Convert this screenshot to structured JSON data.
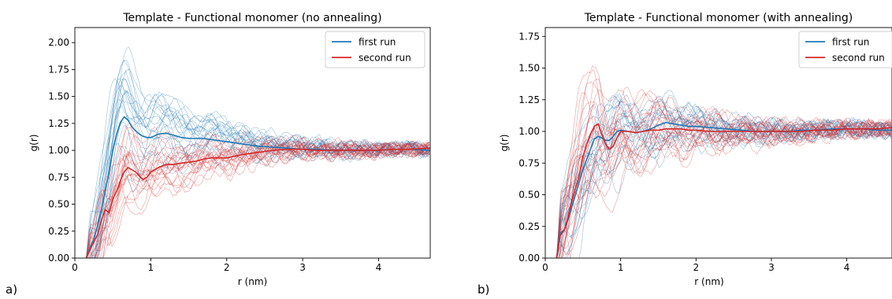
{
  "chart_data": [
    {
      "type": "line",
      "panel_label": "a)",
      "title": "Template - Functional monomer (no annealing)",
      "xlabel": "r (nm)",
      "ylabel": "g(r)",
      "xlim": [
        0,
        4.68
      ],
      "ylim": [
        0,
        2.14
      ],
      "xticks": [
        0,
        1,
        2,
        3,
        4
      ],
      "yticks": [
        0.0,
        0.25,
        0.5,
        0.75,
        1.0,
        1.25,
        1.5,
        1.75,
        2.0
      ],
      "legend_position": "top-right",
      "series": [
        {
          "name": "first run",
          "color": "#1f77b4",
          "x": [
            0.15,
            0.2,
            0.25,
            0.3,
            0.35,
            0.4,
            0.45,
            0.5,
            0.55,
            0.6,
            0.65,
            0.7,
            0.75,
            0.8,
            0.85,
            0.9,
            0.95,
            1.0,
            1.1,
            1.2,
            1.3,
            1.4,
            1.5,
            1.6,
            1.7,
            1.8,
            1.9,
            2.0,
            2.2,
            2.4,
            2.6,
            2.8,
            3.0,
            3.2,
            3.4,
            3.6,
            3.8,
            4.0,
            4.2,
            4.4,
            4.68
          ],
          "y": [
            0.0,
            0.1,
            0.18,
            0.3,
            0.45,
            0.62,
            0.8,
            1.0,
            1.15,
            1.26,
            1.31,
            1.28,
            1.22,
            1.18,
            1.15,
            1.13,
            1.12,
            1.12,
            1.15,
            1.16,
            1.14,
            1.12,
            1.11,
            1.11,
            1.11,
            1.1,
            1.09,
            1.08,
            1.06,
            1.04,
            1.03,
            1.02,
            1.01,
            1.01,
            1.0,
            1.0,
            1.0,
            1.0,
            1.01,
            1.01,
            1.0
          ]
        },
        {
          "name": "second run",
          "color": "#d62728",
          "x": [
            0.15,
            0.2,
            0.25,
            0.3,
            0.35,
            0.4,
            0.45,
            0.5,
            0.55,
            0.6,
            0.65,
            0.7,
            0.75,
            0.8,
            0.85,
            0.9,
            0.95,
            1.0,
            1.1,
            1.2,
            1.3,
            1.4,
            1.5,
            1.6,
            1.7,
            1.8,
            1.9,
            2.0,
            2.2,
            2.4,
            2.6,
            2.8,
            3.0,
            3.2,
            3.4,
            3.6,
            3.8,
            4.0,
            4.2,
            4.4,
            4.68
          ],
          "y": [
            0.0,
            0.08,
            0.15,
            0.22,
            0.35,
            0.45,
            0.42,
            0.55,
            0.62,
            0.72,
            0.8,
            0.84,
            0.82,
            0.8,
            0.76,
            0.73,
            0.75,
            0.8,
            0.84,
            0.87,
            0.87,
            0.88,
            0.89,
            0.9,
            0.92,
            0.93,
            0.93,
            0.93,
            0.96,
            0.98,
            1.0,
            1.01,
            1.01,
            1.0,
            1.0,
            1.0,
            1.0,
            1.0,
            1.01,
            1.01,
            1.02
          ]
        }
      ]
    },
    {
      "type": "line",
      "panel_label": "b)",
      "title": "Template - Functional monomer (with annealing)",
      "xlabel": "r (nm)",
      "ylabel": "g(r)",
      "xlim": [
        0,
        4.6
      ],
      "ylim": [
        0,
        1.82
      ],
      "xticks": [
        0,
        1,
        2,
        3,
        4
      ],
      "yticks": [
        0.0,
        0.25,
        0.5,
        0.75,
        1.0,
        1.25,
        1.5,
        1.75
      ],
      "legend_position": "top-right",
      "series": [
        {
          "name": "first run",
          "color": "#1f77b4",
          "x": [
            0.15,
            0.2,
            0.25,
            0.3,
            0.35,
            0.4,
            0.45,
            0.5,
            0.55,
            0.6,
            0.65,
            0.7,
            0.75,
            0.8,
            0.85,
            0.9,
            0.95,
            1.0,
            1.1,
            1.2,
            1.3,
            1.4,
            1.5,
            1.6,
            1.7,
            1.8,
            1.9,
            2.0,
            2.2,
            2.4,
            2.6,
            2.8,
            3.0,
            3.2,
            3.4,
            3.6,
            3.8,
            4.0,
            4.2,
            4.4,
            4.6
          ],
          "y": [
            0.0,
            0.2,
            0.22,
            0.3,
            0.4,
            0.5,
            0.6,
            0.7,
            0.78,
            0.86,
            0.94,
            0.96,
            0.95,
            0.93,
            0.93,
            0.96,
            1.0,
            1.01,
            1.0,
            0.99,
            1.0,
            1.02,
            1.05,
            1.07,
            1.06,
            1.05,
            1.04,
            1.04,
            1.03,
            1.02,
            1.01,
            1.0,
            1.0,
            1.0,
            1.01,
            1.01,
            1.02,
            1.02,
            1.02,
            1.01,
            1.01
          ]
        },
        {
          "name": "second run",
          "color": "#d62728",
          "x": [
            0.15,
            0.2,
            0.25,
            0.3,
            0.35,
            0.4,
            0.45,
            0.5,
            0.55,
            0.6,
            0.65,
            0.7,
            0.75,
            0.8,
            0.85,
            0.9,
            0.95,
            1.0,
            1.1,
            1.2,
            1.3,
            1.4,
            1.5,
            1.6,
            1.7,
            1.8,
            1.9,
            2.0,
            2.2,
            2.4,
            2.6,
            2.8,
            3.0,
            3.2,
            3.4,
            3.6,
            3.8,
            4.0,
            4.2,
            4.4,
            4.6
          ],
          "y": [
            0.0,
            0.18,
            0.22,
            0.32,
            0.45,
            0.55,
            0.65,
            0.8,
            0.9,
            0.98,
            1.04,
            1.06,
            0.98,
            0.9,
            0.86,
            0.88,
            0.95,
            1.0,
            1.0,
            0.99,
            1.0,
            1.01,
            1.01,
            1.02,
            1.02,
            1.02,
            1.01,
            1.01,
            1.0,
            1.0,
            1.0,
            1.0,
            1.0,
            1.0,
            1.0,
            1.01,
            1.01,
            1.02,
            1.02,
            1.02,
            1.03
          ]
        }
      ]
    }
  ]
}
